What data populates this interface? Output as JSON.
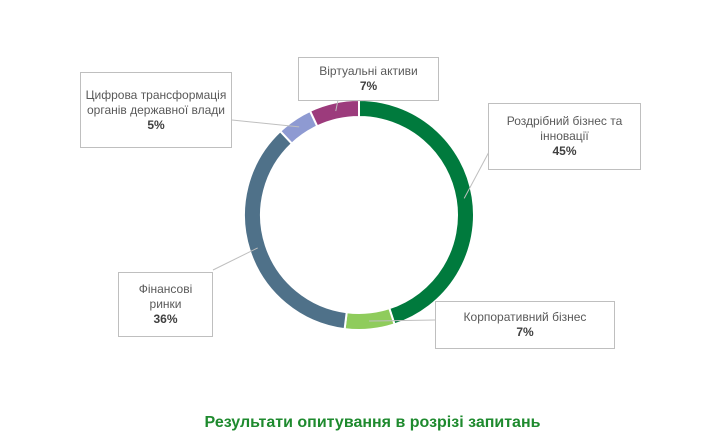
{
  "chart_data": {
    "type": "pie",
    "variant": "donut",
    "title": "",
    "slices": [
      {
        "label": "Роздрібний бізнес та інновації",
        "value": 45,
        "value_label": "45%",
        "color": "#007a3d"
      },
      {
        "label": "Корпоративний бізнес",
        "value": 7,
        "value_label": "7%",
        "color": "#8fcc5c"
      },
      {
        "label": "Фінансові ринки",
        "value": 36,
        "value_label": "36%",
        "color": "#4f7189"
      },
      {
        "label": "Цифрова трансформація органів державної влади",
        "value": 5,
        "value_label": "5%",
        "color": "#8e9ad2"
      },
      {
        "label": "Віртуальні активи",
        "value": 7,
        "value_label": "7%",
        "color": "#9c3b7c"
      }
    ],
    "legend": "none",
    "data_labels": "callouts"
  },
  "caption": "Результати опитування в розрізі запитань"
}
